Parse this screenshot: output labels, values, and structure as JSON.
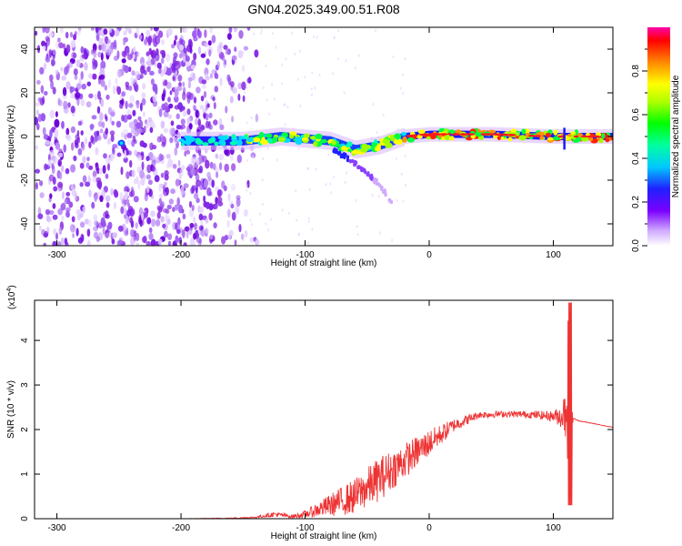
{
  "title": "GN04.2025.349.00.51.R08",
  "chart_data": [
    {
      "type": "heatmap",
      "xlabel": "Height of straight line (km)",
      "ylabel": "Frequency (Hz)",
      "xlim": [
        -318,
        148
      ],
      "ylim": [
        -50,
        50
      ],
      "xticks": [
        -300,
        -200,
        -100,
        0,
        100
      ],
      "yticks": [
        -40,
        -20,
        0,
        20,
        40
      ],
      "colorbar": {
        "label": "Normalized spectral amplitude",
        "range": [
          0.0,
          1.0
        ],
        "ticks": [
          "0.0",
          "0.2",
          "0.4",
          "0.6",
          "0.8"
        ],
        "tick_values": [
          0.0,
          0.2,
          0.4,
          0.6,
          0.8
        ],
        "colors": [
          "#ffffff",
          "#cfa8ff",
          "#7a00ff",
          "#2020ff",
          "#00c8ff",
          "#00ffa0",
          "#00ff00",
          "#b0ff00",
          "#ffff00",
          "#ff8800",
          "#ff0000",
          "#ff00aa"
        ]
      },
      "regions": {
        "noise_band": [
          -318,
          -150
        ],
        "signal_start": -200,
        "signal_curve": [
          [
            -200,
            -2
          ],
          [
            -150,
            -2
          ],
          [
            -120,
            0
          ],
          [
            -100,
            -1
          ],
          [
            -80,
            -2
          ],
          [
            -60,
            -6
          ],
          [
            -40,
            -4
          ],
          [
            -20,
            0
          ],
          [
            0,
            1
          ],
          [
            50,
            1
          ],
          [
            100,
            0
          ],
          [
            148,
            0
          ]
        ],
        "branch": [
          [
            -80,
            -5
          ],
          [
            -60,
            -12
          ],
          [
            -40,
            -22
          ],
          [
            -30,
            -30
          ]
        ]
      }
    },
    {
      "type": "line",
      "xlabel": "Height of straight line (km)",
      "ylabel": "SNR (10 * v/v)",
      "y_multiplier": "(x10",
      "y_multiplier_exp": "4",
      "y_multiplier_close": ")",
      "xlim": [
        -318,
        148
      ],
      "ylim": [
        0,
        4.9
      ],
      "xticks": [
        -300,
        -200,
        -100,
        0,
        100
      ],
      "yticks": [
        0,
        1,
        2,
        3,
        4
      ],
      "series": [
        {
          "color": "#ee3333",
          "x": [
            -318,
            -250,
            -200,
            -160,
            -140,
            -125,
            -110,
            -100,
            -80,
            -60,
            -40,
            -20,
            0,
            20,
            40,
            60,
            80,
            100,
            108,
            112,
            114,
            116,
            120,
            148
          ],
          "y": [
            0.0,
            0.0,
            0.0,
            0.01,
            0.03,
            0.1,
            0.05,
            0.1,
            0.3,
            0.5,
            0.9,
            1.3,
            1.7,
            2.1,
            2.33,
            2.35,
            2.34,
            2.3,
            2.3,
            3.0,
            2.3,
            2.25,
            2.2,
            2.05
          ],
          "noise": [
            0.0,
            0.0,
            0.0,
            0.01,
            0.02,
            0.06,
            0.04,
            0.08,
            0.25,
            0.4,
            0.5,
            0.4,
            0.3,
            0.15,
            0.08,
            0.07,
            0.08,
            0.12,
            0.3,
            1.8,
            0.6,
            0.02,
            0.01,
            0.005
          ]
        }
      ]
    }
  ]
}
